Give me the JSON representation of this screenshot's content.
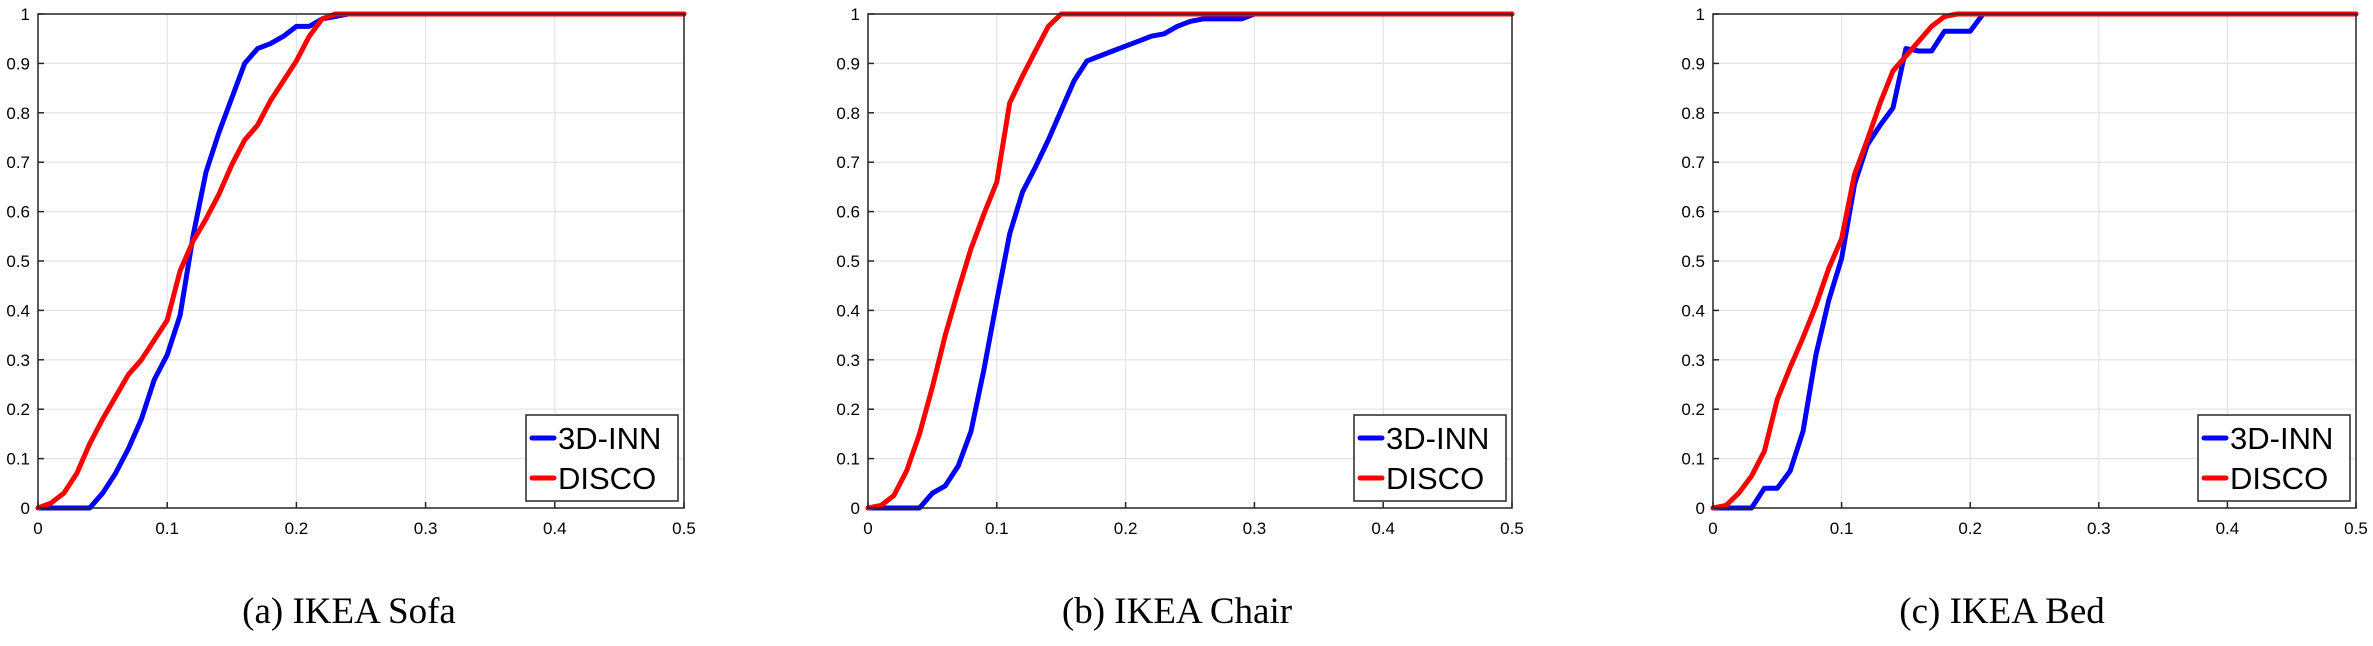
{
  "colors": {
    "series_1": "#0000ff",
    "series_2": "#ff0000",
    "grid": "#e3e3e3",
    "axis": "#262626"
  },
  "chart_data": [
    {
      "type": "line",
      "caption": "(a) IKEA Sofa",
      "xlim": [
        0,
        0.5
      ],
      "ylim": [
        0,
        1
      ],
      "xticks": [
        "0",
        "0.1",
        "0.2",
        "0.3",
        "0.4",
        "0.5"
      ],
      "yticks": [
        "0",
        "0.1",
        "0.2",
        "0.3",
        "0.4",
        "0.5",
        "0.6",
        "0.7",
        "0.8",
        "0.9",
        "1"
      ],
      "grid": true,
      "legend_position": "bottom-right",
      "series": [
        {
          "name": "3D-INN",
          "color": "#0000ff",
          "x": [
            0,
            0.02,
            0.04,
            0.05,
            0.06,
            0.07,
            0.08,
            0.09,
            0.1,
            0.11,
            0.12,
            0.13,
            0.14,
            0.15,
            0.16,
            0.17,
            0.18,
            0.19,
            0.2,
            0.21,
            0.22,
            0.23,
            0.24,
            0.5
          ],
          "y": [
            0,
            0,
            0,
            0.03,
            0.07,
            0.12,
            0.18,
            0.26,
            0.31,
            0.39,
            0.55,
            0.68,
            0.76,
            0.83,
            0.9,
            0.93,
            0.94,
            0.955,
            0.975,
            0.975,
            0.99,
            0.995,
            1,
            1
          ]
        },
        {
          "name": "DISCO",
          "color": "#ff0000",
          "x": [
            0,
            0.01,
            0.02,
            0.03,
            0.04,
            0.05,
            0.06,
            0.07,
            0.08,
            0.09,
            0.1,
            0.11,
            0.12,
            0.13,
            0.14,
            0.15,
            0.16,
            0.17,
            0.18,
            0.19,
            0.2,
            0.21,
            0.22,
            0.23,
            0.5
          ],
          "y": [
            0,
            0.01,
            0.03,
            0.07,
            0.13,
            0.18,
            0.225,
            0.27,
            0.3,
            0.34,
            0.38,
            0.48,
            0.54,
            0.585,
            0.635,
            0.695,
            0.745,
            0.775,
            0.825,
            0.865,
            0.905,
            0.955,
            0.99,
            1,
            1
          ]
        }
      ]
    },
    {
      "type": "line",
      "caption": "(b) IKEA Chair",
      "xlim": [
        0,
        0.5
      ],
      "ylim": [
        0,
        1
      ],
      "xticks": [
        "0",
        "0.1",
        "0.2",
        "0.3",
        "0.4",
        "0.5"
      ],
      "yticks": [
        "0",
        "0.1",
        "0.2",
        "0.3",
        "0.4",
        "0.5",
        "0.6",
        "0.7",
        "0.8",
        "0.9",
        "1"
      ],
      "grid": true,
      "legend_position": "bottom-right",
      "series": [
        {
          "name": "3D-INN",
          "color": "#0000ff",
          "x": [
            0,
            0.04,
            0.05,
            0.06,
            0.07,
            0.08,
            0.09,
            0.1,
            0.11,
            0.12,
            0.13,
            0.14,
            0.15,
            0.16,
            0.17,
            0.18,
            0.19,
            0.2,
            0.21,
            0.22,
            0.23,
            0.24,
            0.25,
            0.26,
            0.27,
            0.28,
            0.29,
            0.3,
            0.5
          ],
          "y": [
            0,
            0,
            0.03,
            0.045,
            0.085,
            0.155,
            0.28,
            0.42,
            0.555,
            0.64,
            0.69,
            0.745,
            0.805,
            0.865,
            0.905,
            0.915,
            0.925,
            0.935,
            0.945,
            0.955,
            0.96,
            0.975,
            0.985,
            0.99,
            0.99,
            0.99,
            0.99,
            1,
            1
          ]
        },
        {
          "name": "DISCO",
          "color": "#ff0000",
          "x": [
            0,
            0.01,
            0.02,
            0.03,
            0.04,
            0.05,
            0.06,
            0.07,
            0.08,
            0.09,
            0.1,
            0.11,
            0.12,
            0.13,
            0.14,
            0.15,
            0.5
          ],
          "y": [
            0,
            0.005,
            0.025,
            0.075,
            0.15,
            0.245,
            0.35,
            0.44,
            0.525,
            0.595,
            0.66,
            0.82,
            0.875,
            0.925,
            0.975,
            1,
            1
          ]
        }
      ]
    },
    {
      "type": "line",
      "caption": "(c) IKEA Bed",
      "xlim": [
        0,
        0.5
      ],
      "ylim": [
        0,
        1
      ],
      "xticks": [
        "0",
        "0.1",
        "0.2",
        "0.3",
        "0.4",
        "0.5"
      ],
      "yticks": [
        "0",
        "0.1",
        "0.2",
        "0.3",
        "0.4",
        "0.5",
        "0.6",
        "0.7",
        "0.8",
        "0.9",
        "1"
      ],
      "grid": true,
      "legend_position": "bottom-right",
      "series": [
        {
          "name": "3D-INN",
          "color": "#0000ff",
          "x": [
            0,
            0.03,
            0.04,
            0.05,
            0.06,
            0.07,
            0.08,
            0.09,
            0.1,
            0.11,
            0.12,
            0.13,
            0.14,
            0.15,
            0.16,
            0.17,
            0.18,
            0.19,
            0.2,
            0.21,
            0.5
          ],
          "y": [
            0,
            0,
            0.04,
            0.04,
            0.075,
            0.155,
            0.31,
            0.42,
            0.505,
            0.655,
            0.735,
            0.775,
            0.81,
            0.93,
            0.925,
            0.925,
            0.965,
            0.965,
            0.965,
            1,
            1
          ]
        },
        {
          "name": "DISCO",
          "color": "#ff0000",
          "x": [
            0,
            0.01,
            0.02,
            0.03,
            0.04,
            0.05,
            0.06,
            0.07,
            0.08,
            0.09,
            0.1,
            0.11,
            0.12,
            0.13,
            0.14,
            0.15,
            0.16,
            0.17,
            0.18,
            0.19,
            0.5
          ],
          "y": [
            0,
            0.005,
            0.03,
            0.065,
            0.115,
            0.22,
            0.285,
            0.345,
            0.41,
            0.485,
            0.545,
            0.675,
            0.745,
            0.82,
            0.885,
            0.915,
            0.945,
            0.975,
            0.995,
            1,
            1
          ]
        }
      ]
    }
  ]
}
